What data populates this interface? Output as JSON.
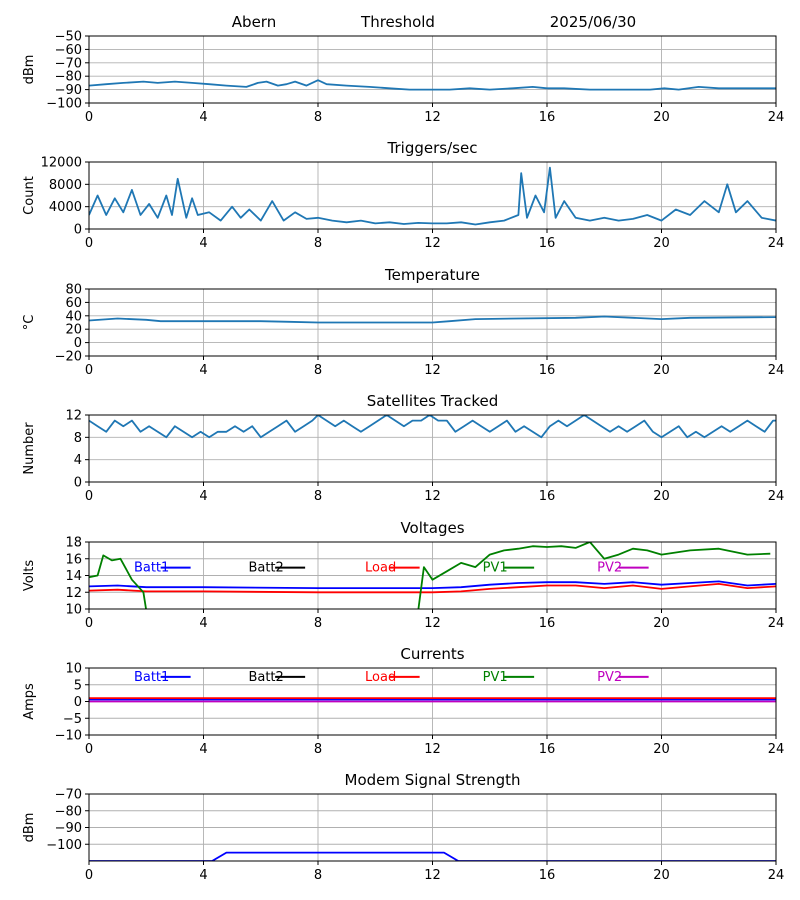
{
  "header": {
    "station": "Abern",
    "mode": "Threshold",
    "date": "2025/06/30"
  },
  "chart_data": [
    {
      "id": "threshold",
      "type": "line",
      "title": "",
      "ylabel": "dBm",
      "xlim": [
        0,
        24
      ],
      "ylim": [
        -100,
        -50
      ],
      "xticks": [
        0,
        4,
        8,
        12,
        16,
        20,
        24
      ],
      "yticks": [
        -100,
        -90,
        -80,
        -70,
        -60,
        -50
      ],
      "grid": true,
      "series": [
        {
          "color": "#1f77b4",
          "x": [
            0,
            0.6,
            1.2,
            1.9,
            2.4,
            3.0,
            3.6,
            4.2,
            4.8,
            5.5,
            5.9,
            6.2,
            6.6,
            6.9,
            7.2,
            7.6,
            8.0,
            8.3,
            9.0,
            9.8,
            10.5,
            11.2,
            12.0,
            12.6,
            13.3,
            14.0,
            14.8,
            15.5,
            16.0,
            16.6,
            17.5,
            18.3,
            19.0,
            19.6,
            20.1,
            20.6,
            21.3,
            22.0,
            23.0,
            24.0
          ],
          "y": [
            -87,
            -86,
            -85,
            -84,
            -85,
            -84,
            -85,
            -86,
            -87,
            -88,
            -85,
            -84,
            -87,
            -86,
            -84,
            -87,
            -83,
            -86,
            -87,
            -88,
            -89,
            -90,
            -90,
            -90,
            -89,
            -90,
            -89,
            -88,
            -89,
            -89,
            -90,
            -90,
            -90,
            -90,
            -89,
            -90,
            -88,
            -89,
            -89,
            -89
          ]
        }
      ]
    },
    {
      "id": "triggers",
      "type": "line",
      "title": "Triggers/sec",
      "ylabel": "Count",
      "xlim": [
        0,
        24
      ],
      "ylim": [
        0,
        12000
      ],
      "xticks": [
        0,
        4,
        8,
        12,
        16,
        20,
        24
      ],
      "yticks": [
        0,
        4000,
        8000,
        12000
      ],
      "grid": true,
      "series": [
        {
          "color": "#1f77b4",
          "x": [
            0,
            0.3,
            0.6,
            0.9,
            1.2,
            1.5,
            1.8,
            2.1,
            2.4,
            2.7,
            2.9,
            3.1,
            3.4,
            3.6,
            3.8,
            4.2,
            4.6,
            5.0,
            5.3,
            5.6,
            6.0,
            6.4,
            6.8,
            7.2,
            7.6,
            8.0,
            8.5,
            9.0,
            9.5,
            10.0,
            10.5,
            11.0,
            11.5,
            12.0,
            12.5,
            13.0,
            13.5,
            14.0,
            14.5,
            15.0,
            15.1,
            15.3,
            15.6,
            15.9,
            16.1,
            16.3,
            16.6,
            17.0,
            17.5,
            18.0,
            18.5,
            19.0,
            19.5,
            20.0,
            20.5,
            21.0,
            21.5,
            22.0,
            22.3,
            22.6,
            23.0,
            23.5,
            24.0
          ],
          "y": [
            2500,
            6000,
            2500,
            5500,
            3000,
            7000,
            2500,
            4500,
            2000,
            6000,
            2500,
            9000,
            2000,
            5500,
            2500,
            3000,
            1500,
            4000,
            2000,
            3500,
            1500,
            5000,
            1500,
            3000,
            1800,
            2000,
            1500,
            1200,
            1500,
            1000,
            1200,
            900,
            1100,
            1000,
            1000,
            1200,
            800,
            1200,
            1500,
            2500,
            10000,
            2000,
            6000,
            3000,
            11000,
            2000,
            5000,
            2000,
            1500,
            2000,
            1500,
            1800,
            2500,
            1500,
            3500,
            2500,
            5000,
            3000,
            8000,
            3000,
            5000,
            2000,
            1500
          ]
        }
      ]
    },
    {
      "id": "temperature",
      "type": "line",
      "title": "Temperature",
      "ylabel": "°C",
      "xlim": [
        0,
        24
      ],
      "ylim": [
        -20,
        80
      ],
      "xticks": [
        0,
        4,
        8,
        12,
        16,
        20,
        24
      ],
      "yticks": [
        -20,
        0,
        20,
        40,
        60,
        80
      ],
      "grid": true,
      "series": [
        {
          "color": "#1f77b4",
          "x": [
            0,
            1,
            2,
            2.5,
            4,
            6,
            7,
            8,
            10,
            12,
            12.6,
            13.5,
            15,
            17,
            18,
            20,
            21,
            24
          ],
          "y": [
            33,
            36,
            34,
            32,
            32,
            32,
            31,
            30,
            30,
            30,
            32,
            35,
            36,
            37,
            39,
            35,
            37,
            38
          ]
        }
      ]
    },
    {
      "id": "satellites",
      "type": "line",
      "title": "Satellites Tracked",
      "ylabel": "Number",
      "xlim": [
        0,
        24
      ],
      "ylim": [
        0,
        12
      ],
      "xticks": [
        0,
        4,
        8,
        12,
        16,
        20,
        24
      ],
      "yticks": [
        0,
        4,
        8,
        12
      ],
      "grid": true,
      "series": [
        {
          "color": "#1f77b4",
          "x": [
            0,
            0.3,
            0.6,
            0.9,
            1.2,
            1.5,
            1.8,
            2.1,
            2.4,
            2.7,
            3.0,
            3.3,
            3.6,
            3.9,
            4.2,
            4.5,
            4.8,
            5.1,
            5.4,
            5.7,
            6.0,
            6.3,
            6.6,
            6.9,
            7.2,
            7.5,
            7.8,
            8.0,
            8.3,
            8.6,
            8.9,
            9.2,
            9.5,
            9.8,
            10.1,
            10.4,
            10.7,
            11.0,
            11.3,
            11.6,
            11.9,
            12.2,
            12.5,
            12.8,
            13.1,
            13.4,
            13.7,
            14.0,
            14.3,
            14.6,
            14.9,
            15.2,
            15.5,
            15.8,
            16.1,
            16.4,
            16.7,
            17.0,
            17.3,
            17.6,
            17.9,
            18.2,
            18.5,
            18.8,
            19.1,
            19.4,
            19.7,
            20.0,
            20.3,
            20.6,
            20.9,
            21.2,
            21.5,
            21.8,
            22.1,
            22.4,
            22.7,
            23.0,
            23.3,
            23.6,
            23.9,
            24.0
          ],
          "y": [
            11,
            10,
            9,
            11,
            10,
            11,
            9,
            10,
            9,
            8,
            10,
            9,
            8,
            9,
            8,
            9,
            9,
            10,
            9,
            10,
            8,
            9,
            10,
            11,
            9,
            10,
            11,
            12,
            11,
            10,
            11,
            10,
            9,
            10,
            11,
            12,
            11,
            10,
            11,
            11,
            12,
            11,
            11,
            9,
            10,
            11,
            10,
            9,
            10,
            11,
            9,
            10,
            9,
            8,
            10,
            11,
            10,
            11,
            12,
            11,
            10,
            9,
            10,
            9,
            10,
            11,
            9,
            8,
            9,
            10,
            8,
            9,
            8,
            9,
            10,
            9,
            10,
            11,
            10,
            9,
            11,
            11
          ]
        }
      ]
    },
    {
      "id": "voltages",
      "type": "line",
      "title": "Voltages",
      "ylabel": "Volts",
      "xlim": [
        0,
        24
      ],
      "ylim": [
        10,
        18
      ],
      "xticks": [
        0,
        4,
        8,
        12,
        16,
        20,
        24
      ],
      "yticks": [
        10,
        12,
        14,
        16,
        18
      ],
      "grid": true,
      "legend": [
        {
          "label": "Batt1",
          "color": "#0000ff",
          "x": 1.0
        },
        {
          "label": "Batt2",
          "color": "#000000",
          "x": 5.0
        },
        {
          "label": "Load",
          "color": "#ff0000",
          "x": 9.0
        },
        {
          "label": "PV1",
          "color": "#008000",
          "x": 13.0
        },
        {
          "label": "PV2",
          "color": "#bf00bf",
          "x": 17.0
        }
      ],
      "legend_y": 15.0,
      "series": [
        {
          "name": "Batt1",
          "color": "#0000ff",
          "x": [
            0,
            1,
            2,
            4,
            8,
            12,
            13,
            14,
            15,
            16,
            17,
            18,
            19,
            20,
            21,
            22,
            23,
            24
          ],
          "y": [
            12.7,
            12.8,
            12.6,
            12.6,
            12.5,
            12.5,
            12.6,
            12.9,
            13.1,
            13.2,
            13.2,
            13.0,
            13.2,
            12.9,
            13.1,
            13.3,
            12.8,
            13.0
          ]
        },
        {
          "name": "Load",
          "color": "#ff0000",
          "x": [
            0,
            1,
            2,
            4,
            8,
            12,
            13,
            14,
            15,
            16,
            17,
            18,
            19,
            20,
            21,
            22,
            23,
            24
          ],
          "y": [
            12.2,
            12.3,
            12.1,
            12.1,
            12.0,
            12.0,
            12.1,
            12.4,
            12.6,
            12.8,
            12.8,
            12.5,
            12.8,
            12.4,
            12.7,
            13.0,
            12.5,
            12.7
          ]
        },
        {
          "name": "PV1",
          "color": "#008000",
          "x": [
            0,
            0.3,
            0.5,
            0.8,
            1.1,
            1.5,
            1.9,
            2.0,
            11.5,
            11.7,
            12.0,
            12.5,
            13.0,
            13.5,
            14.0,
            14.5,
            15.0,
            15.5,
            16.0,
            16.5,
            17.0,
            17.5,
            18.0,
            18.5,
            19.0,
            19.5,
            20.0,
            21.0,
            22.0,
            23.0,
            23.8
          ],
          "y": [
            13.8,
            14.0,
            16.4,
            15.8,
            16.0,
            13.5,
            12.0,
            9.8,
            9.8,
            15.0,
            13.5,
            14.5,
            15.5,
            15.0,
            16.5,
            17.0,
            17.2,
            17.5,
            17.4,
            17.5,
            17.3,
            18.0,
            16.0,
            16.5,
            17.2,
            17.0,
            16.5,
            17.0,
            17.2,
            16.5,
            16.6
          ]
        }
      ]
    },
    {
      "id": "currents",
      "type": "line",
      "title": "Currents",
      "ylabel": "Amps",
      "xlim": [
        0,
        24
      ],
      "ylim": [
        -10,
        10
      ],
      "xticks": [
        0,
        4,
        8,
        12,
        16,
        20,
        24
      ],
      "yticks": [
        -10,
        -5,
        0,
        5,
        10
      ],
      "grid": true,
      "legend": [
        {
          "label": "Batt1",
          "color": "#0000ff",
          "x": 1.0
        },
        {
          "label": "Batt2",
          "color": "#000000",
          "x": 5.0
        },
        {
          "label": "Load",
          "color": "#ff0000",
          "x": 9.0
        },
        {
          "label": "PV1",
          "color": "#008000",
          "x": 13.0
        },
        {
          "label": "PV2",
          "color": "#bf00bf",
          "x": 17.0
        }
      ],
      "legend_y": 7.5,
      "series": [
        {
          "name": "Batt1",
          "color": "#0000ff",
          "x": [
            0,
            24
          ],
          "y": [
            0.6,
            0.6
          ]
        },
        {
          "name": "Load",
          "color": "#ff0000",
          "x": [
            0,
            24
          ],
          "y": [
            1.0,
            1.0
          ]
        },
        {
          "name": "PV2",
          "color": "#bf00bf",
          "x": [
            0,
            24
          ],
          "y": [
            0.0,
            0.0
          ]
        }
      ]
    },
    {
      "id": "modem",
      "type": "line",
      "title": "Modem Signal Strength",
      "ylabel": "dBm",
      "xlim": [
        0,
        24
      ],
      "ylim": [
        -110,
        -70
      ],
      "xticks": [
        0,
        4,
        8,
        12,
        16,
        20,
        24
      ],
      "yticks": [
        -100,
        -90,
        -80,
        -70
      ],
      "grid": true,
      "series": [
        {
          "color": "#0000ff",
          "x": [
            0,
            4.3,
            4.8,
            12.4,
            12.9,
            24
          ],
          "y": [
            -110,
            -110,
            -105,
            -105,
            -110,
            -110
          ]
        }
      ]
    }
  ]
}
